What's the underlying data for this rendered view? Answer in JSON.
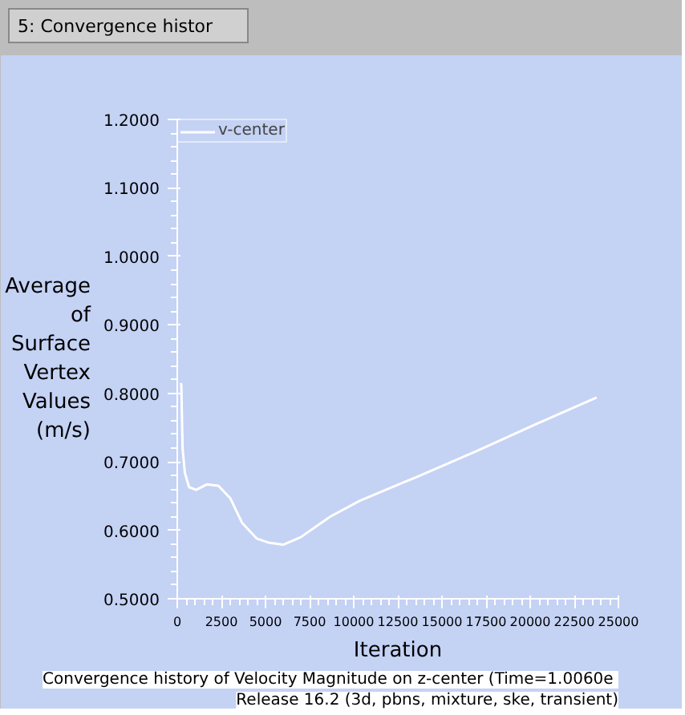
{
  "chart_data": {
    "type": "line",
    "xlabel": "Iteration",
    "ylabel": "Average of Surface Vertex Values (m/s)",
    "x": [
      200,
      230,
      300,
      430,
      670,
      1070,
      1670,
      2330,
      3000,
      3670,
      4500,
      5170,
      6000,
      7000,
      8670,
      10330,
      13670,
      17000,
      20330,
      23770
    ],
    "series": [
      {
        "name": "v-center",
        "color": "#ffffff",
        "values": [
          0.815,
          0.812,
          0.72,
          0.684,
          0.663,
          0.659,
          0.667,
          0.665,
          0.647,
          0.611,
          0.588,
          0.582,
          0.579,
          0.59,
          0.62,
          0.643,
          0.679,
          0.716,
          0.755,
          0.794
        ]
      }
    ],
    "xlim": [
      0,
      25000
    ],
    "ylim": [
      0.5,
      1.2
    ],
    "xticks": [
      0,
      2500,
      5000,
      7500,
      10000,
      12500,
      15000,
      17500,
      20000,
      22500,
      25000
    ],
    "yticks": [
      {
        "value": 0.5,
        "label": "0.5000"
      },
      {
        "value": 0.6,
        "label": "0.6000"
      },
      {
        "value": 0.7,
        "label": "0.7000"
      },
      {
        "value": 0.8,
        "label": "0.8000"
      },
      {
        "value": 0.9,
        "label": "0.9000"
      },
      {
        "value": 1.0,
        "label": "1.0000"
      },
      {
        "value": 1.1,
        "label": "1.1000"
      },
      {
        "value": 1.2,
        "label": "1.2000"
      }
    ],
    "grid": false,
    "legend": "top left",
    "annotations": [
      "5: Convergence histor",
      "Convergence history of Velocity Magnitude on z-center  (Time=1.0060e",
      "Release 16.2 (3d, pbns, mixture, ske, transient)"
    ]
  }
}
